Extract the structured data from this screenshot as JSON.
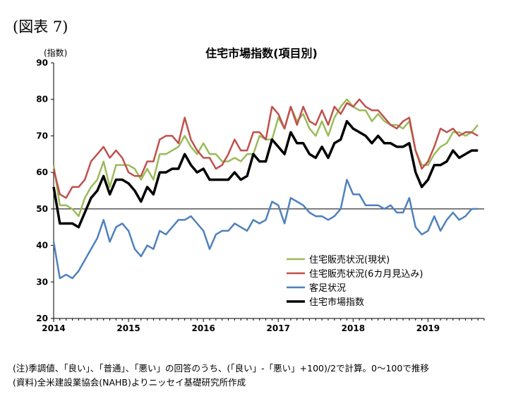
{
  "figure_label": "(図表 7)",
  "notes": {
    "note": "(注)季調値、「良い」、「普通」、「悪い」の回答のうち、(「良い」-「悪い」+100)/2で計算。0～100で推移",
    "source": "(資料)全米建設業協会(NAHB)よりニッセイ基礎研究所作成"
  },
  "chart_data": {
    "type": "line",
    "title": "住宅市場指数(項目別)",
    "ylabel": "(指数)",
    "xlabel": "",
    "ylim": [
      20,
      90
    ],
    "yticks": [
      20,
      30,
      40,
      50,
      60,
      70,
      80,
      90
    ],
    "xticks": [
      "2014",
      "2015",
      "2016",
      "2017",
      "2018",
      "2019"
    ],
    "x_start": "2014-01",
    "frequency": "monthly",
    "reference_line": 50,
    "grid": false,
    "legend_position": "bottom-right",
    "colors": {
      "current_sales": "#9bbb59",
      "future_sales": "#c0504d",
      "traffic": "#4f81bd",
      "index": "#000000",
      "reference": "#000000"
    },
    "series": [
      {
        "key": "current_sales",
        "name": "住宅販売状況(現状)",
        "values": [
          62,
          51,
          51,
          50,
          48,
          53,
          56,
          58,
          63,
          56,
          62,
          62,
          62,
          61,
          58,
          61,
          58,
          65,
          65,
          66,
          67,
          70,
          67,
          65,
          68,
          65,
          65,
          63,
          63,
          64,
          63,
          65,
          65,
          70,
          69,
          69,
          75,
          72,
          78,
          74,
          76,
          72,
          70,
          74,
          70,
          75,
          78,
          80,
          78,
          77,
          77,
          74,
          76,
          74,
          73,
          73,
          72,
          74,
          66,
          62,
          62,
          65,
          67,
          68,
          71,
          71,
          70,
          71,
          73
        ]
      },
      {
        "key": "future_sales",
        "name": "住宅販売状況(6カ月見込み)",
        "values": [
          61,
          54,
          53,
          56,
          56,
          58,
          63,
          65,
          67,
          64,
          66,
          64,
          60,
          59,
          59,
          63,
          63,
          69,
          70,
          70,
          68,
          75,
          69,
          66,
          64,
          64,
          61,
          62,
          65,
          69,
          66,
          66,
          71,
          71,
          69,
          78,
          76,
          72,
          78,
          73,
          78,
          74,
          73,
          77,
          73,
          78,
          76,
          79,
          78,
          80,
          78,
          77,
          77,
          75,
          73,
          72,
          74,
          75,
          66,
          61,
          63,
          67,
          72,
          71,
          72,
          70,
          71,
          71,
          70
        ]
      },
      {
        "key": "traffic",
        "name": "客足状況",
        "values": [
          41,
          31,
          32,
          31,
          33,
          36,
          39,
          42,
          47,
          41,
          45,
          46,
          44,
          39,
          37,
          40,
          39,
          44,
          43,
          45,
          47,
          47,
          48,
          46,
          44,
          39,
          43,
          44,
          44,
          46,
          45,
          44,
          47,
          46,
          47,
          52,
          51,
          46,
          53,
          52,
          51,
          49,
          48,
          48,
          47,
          48,
          50,
          58,
          54,
          54,
          51,
          51,
          51,
          50,
          51,
          49,
          49,
          53,
          45,
          43,
          44,
          48,
          44,
          47,
          49,
          47,
          48,
          50,
          50
        ]
      },
      {
        "key": "index",
        "name": "住宅市場指数",
        "values": [
          56,
          46,
          46,
          46,
          45,
          49,
          53,
          55,
          59,
          54,
          58,
          58,
          57,
          55,
          52,
          56,
          54,
          60,
          60,
          61,
          61,
          65,
          62,
          60,
          61,
          58,
          58,
          58,
          58,
          60,
          58,
          59,
          65,
          63,
          63,
          69,
          67,
          65,
          71,
          68,
          68,
          65,
          64,
          67,
          64,
          68,
          69,
          74,
          72,
          71,
          70,
          68,
          70,
          68,
          68,
          67,
          67,
          68,
          60,
          56,
          58,
          62,
          62,
          63,
          66,
          64,
          65,
          66,
          66
        ]
      }
    ]
  }
}
